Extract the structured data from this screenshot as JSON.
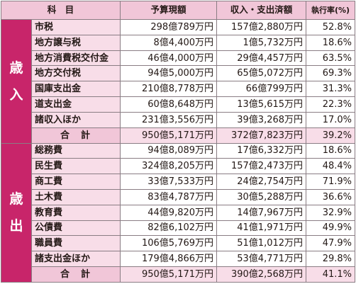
{
  "headers": {
    "item": "科　目",
    "budget": "予算現額",
    "spent": "収入・支出済額",
    "rate": "執行率(%)"
  },
  "revenue": {
    "label_chars": [
      "歳",
      "入"
    ],
    "rows": [
      {
        "item": "市税",
        "budget": "298億789万円",
        "spent": "157億2,880万円",
        "rate": "52.8%"
      },
      {
        "item": "地方譲与税",
        "budget": "8億4,400万円",
        "spent": "1億5,732万円",
        "rate": "18.6%"
      },
      {
        "item": "地方消費税交付金",
        "budget": "46億4,000万円",
        "spent": "29億4,457万円",
        "rate": "63.5%"
      },
      {
        "item": "地方交付税",
        "budget": "94億5,000万円",
        "spent": "65億5,072万円",
        "rate": "69.3%"
      },
      {
        "item": "国庫支出金",
        "budget": "210億8,778万円",
        "spent": "66億799万円",
        "rate": "31.3%"
      },
      {
        "item": "道支出金",
        "budget": "60億8,648万円",
        "spent": "13億5,615万円",
        "rate": "22.3%"
      },
      {
        "item": "諸収入ほか",
        "budget": "231億3,556万円",
        "spent": "39億3,268万円",
        "rate": "17.0%"
      }
    ],
    "total": {
      "item": "合計",
      "budget": "950億5,171万円",
      "spent": "372億7,823万円",
      "rate": "39.2%"
    }
  },
  "expenditure": {
    "label_chars": [
      "歳",
      "出"
    ],
    "rows": [
      {
        "item": "総務費",
        "budget": "94億8,089万円",
        "spent": "17億6,332万円",
        "rate": "18.6%"
      },
      {
        "item": "民生費",
        "budget": "324億8,205万円",
        "spent": "157億2,473万円",
        "rate": "48.4%"
      },
      {
        "item": "商工費",
        "budget": "33億7,533万円",
        "spent": "24億2,754万円",
        "rate": "71.9%"
      },
      {
        "item": "土木費",
        "budget": "83億4,787万円",
        "spent": "30億5,288万円",
        "rate": "36.6%"
      },
      {
        "item": "教育費",
        "budget": "44億9,820万円",
        "spent": "14億7,967万円",
        "rate": "32.9%"
      },
      {
        "item": "公債費",
        "budget": "82億6,102万円",
        "spent": "41億1,971万円",
        "rate": "49.9%"
      },
      {
        "item": "職員費",
        "budget": "106億5,769万円",
        "spent": "51億1,012万円",
        "rate": "47.9%"
      },
      {
        "item": "諸支出金ほか",
        "budget": "179億4,866万円",
        "spent": "53億4,771万円",
        "rate": "29.8%"
      }
    ],
    "total": {
      "item": "合計",
      "budget": "950億5,171万円",
      "spent": "390億2,568万円",
      "rate": "41.1%"
    }
  },
  "colors": {
    "side_band": "#c8256a",
    "header_bg": "#f1c6d8",
    "item_bg": "#f8dde8",
    "border": "#8a7d84"
  }
}
